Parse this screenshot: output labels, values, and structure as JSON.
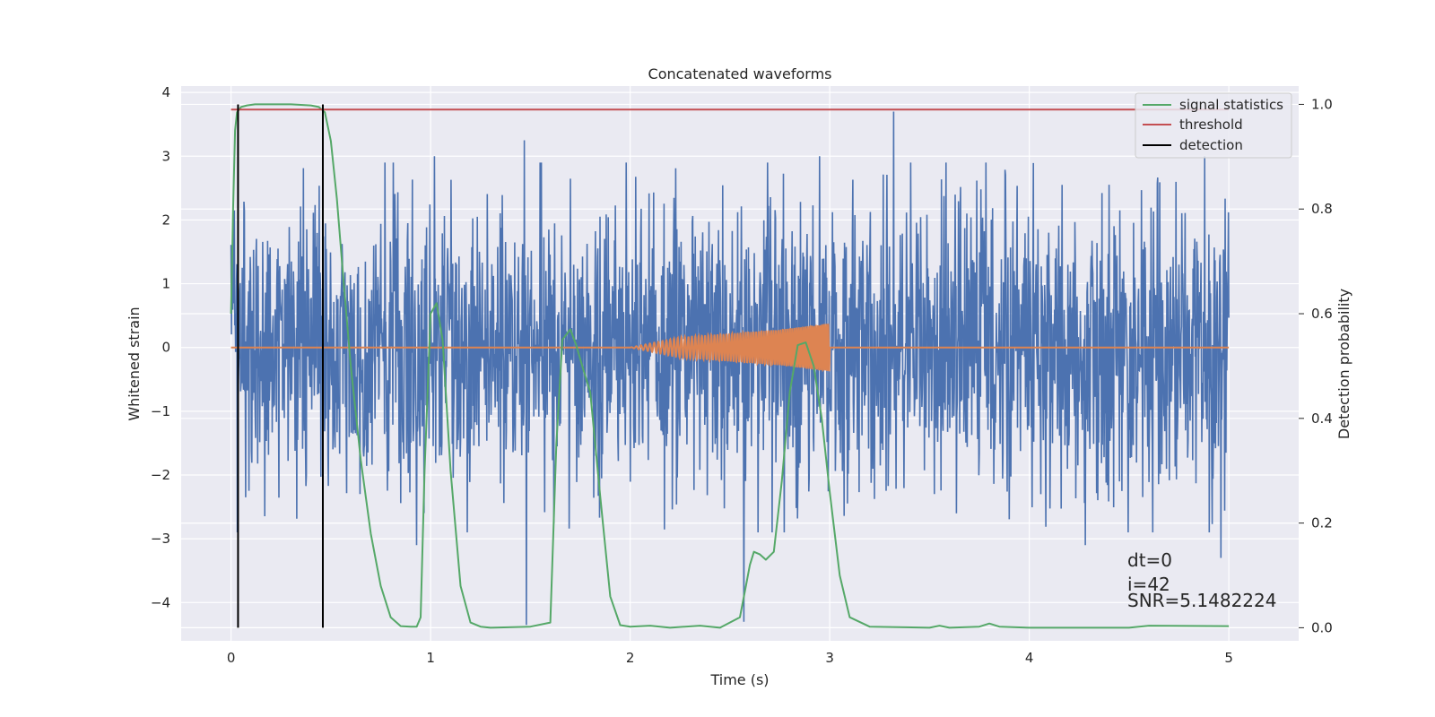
{
  "chart_data": {
    "type": "line",
    "title": "Concatenated waveforms",
    "xlabel": "Time (s)",
    "ylabel": "Whitened strain",
    "y2label": "Detection probability",
    "xlim": [
      -0.25,
      5.35
    ],
    "ylim": [
      -4.6,
      4.1
    ],
    "y2lim": [
      -0.025,
      1.035
    ],
    "xticks": [
      0,
      1,
      2,
      3,
      4,
      5
    ],
    "yticks": [
      -4,
      -3,
      -2,
      -1,
      0,
      1,
      2,
      3,
      4
    ],
    "y2ticks": [
      0.0,
      0.2,
      0.4,
      0.6,
      0.8,
      1.0
    ],
    "grid": true,
    "legend_placement": "upper-right",
    "colors": {
      "background": "#eaeaf2",
      "strain": "#4c72b0",
      "template": "#dd8452",
      "statistics": "#55a868",
      "threshold": "#c44e52",
      "detection": "#000000"
    },
    "series": [
      {
        "name": "",
        "kind": "strain-noise",
        "x_range": [
          0,
          5
        ],
        "typical_amplitude": 1.2,
        "peak_values": [
          {
            "x": 0.01,
            "y": 2.1
          },
          {
            "x": 0.93,
            "y": -3.1
          },
          {
            "x": 1.02,
            "y": 3.0
          },
          {
            "x": 1.47,
            "y": 3.25
          },
          {
            "x": 1.48,
            "y": -4.35
          },
          {
            "x": 1.98,
            "y": 2.9
          },
          {
            "x": 2.57,
            "y": -4.3
          },
          {
            "x": 2.95,
            "y": 3.0
          },
          {
            "x": 3.32,
            "y": 3.7
          },
          {
            "x": 4.28,
            "y": -3.1
          },
          {
            "x": 4.88,
            "y": 3.0
          },
          {
            "x": 4.96,
            "y": -3.3
          }
        ]
      },
      {
        "name": "",
        "kind": "template",
        "x": [
          0,
          2,
          2.25,
          2.5,
          2.75,
          3,
          3.01,
          5
        ],
        "y": [
          0,
          0,
          0.16,
          0.22,
          0.28,
          0.38,
          0,
          0
        ]
      },
      {
        "name": "signal statistics",
        "axis": "right",
        "x": [
          0,
          0.01,
          0.02,
          0.03,
          0.05,
          0.08,
          0.12,
          0.2,
          0.3,
          0.4,
          0.44,
          0.47,
          0.5,
          0.53,
          0.56,
          0.6,
          0.65,
          0.7,
          0.75,
          0.8,
          0.85,
          0.9,
          0.93,
          0.95,
          0.97,
          1.0,
          1.03,
          1.06,
          1.1,
          1.15,
          1.2,
          1.25,
          1.3,
          1.5,
          1.6,
          1.63,
          1.66,
          1.7,
          1.73,
          1.76,
          1.8,
          1.85,
          1.9,
          1.95,
          2.0,
          2.1,
          2.2,
          2.35,
          2.45,
          2.55,
          2.58,
          2.6,
          2.62,
          2.65,
          2.68,
          2.72,
          2.76,
          2.8,
          2.84,
          2.88,
          2.92,
          2.96,
          3.0,
          3.05,
          3.1,
          3.2,
          3.5,
          3.55,
          3.6,
          3.75,
          3.8,
          3.85,
          4.0,
          4.5,
          4.6,
          5.0
        ],
        "y": [
          0.6,
          0.8,
          0.95,
          0.985,
          0.995,
          0.998,
          1.0,
          1.0,
          1.0,
          0.998,
          0.995,
          0.985,
          0.93,
          0.82,
          0.68,
          0.5,
          0.32,
          0.18,
          0.08,
          0.02,
          0.003,
          0.002,
          0.002,
          0.02,
          0.3,
          0.6,
          0.62,
          0.55,
          0.3,
          0.08,
          0.01,
          0.002,
          0.0,
          0.002,
          0.01,
          0.35,
          0.55,
          0.57,
          0.54,
          0.5,
          0.45,
          0.25,
          0.06,
          0.005,
          0.002,
          0.004,
          0.0,
          0.004,
          0.0,
          0.02,
          0.08,
          0.12,
          0.145,
          0.14,
          0.13,
          0.145,
          0.28,
          0.45,
          0.54,
          0.545,
          0.5,
          0.4,
          0.26,
          0.1,
          0.02,
          0.002,
          0.0,
          0.004,
          0.0,
          0.002,
          0.008,
          0.002,
          0.0,
          0.0,
          0.004,
          0.003
        ]
      },
      {
        "name": "threshold",
        "axis": "right",
        "x": [
          0,
          5
        ],
        "y": [
          0.99,
          0.99
        ]
      },
      {
        "name": "detection",
        "axis": "right",
        "kind": "vertical-lines",
        "x": [
          0.035,
          0.46
        ],
        "y_range": [
          0.0,
          1.0
        ]
      }
    ],
    "annotations": [
      "dt=0",
      "i=42",
      "SNR=5.1482224"
    ]
  }
}
